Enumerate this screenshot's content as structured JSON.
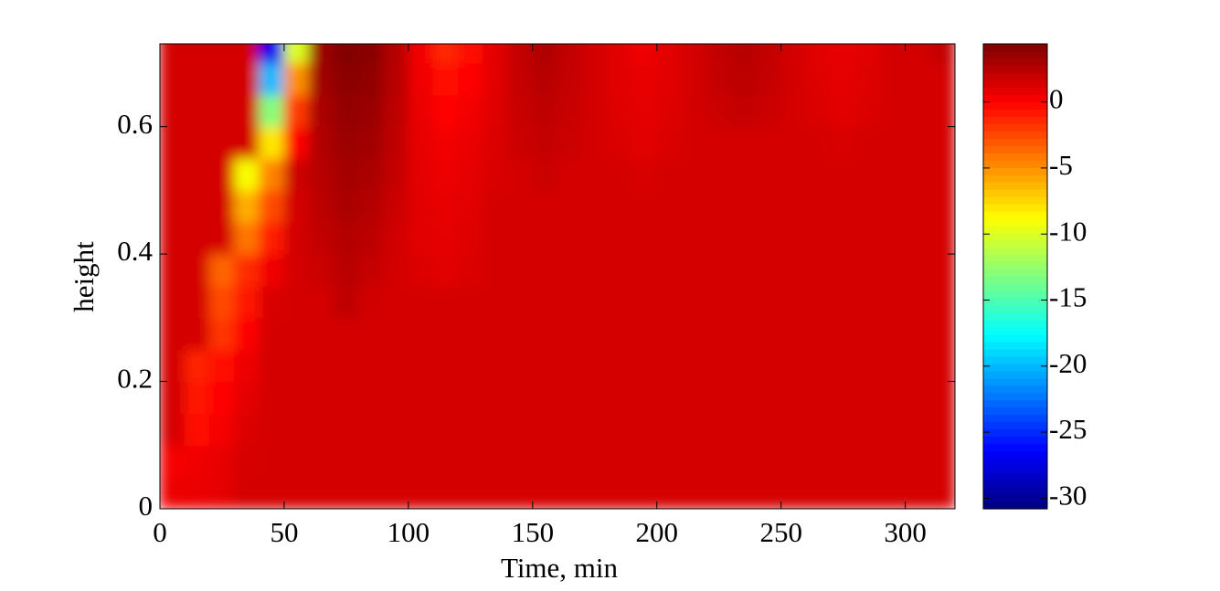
{
  "chart_data": {
    "type": "heatmap",
    "xlabel": "Time, min",
    "ylabel": "height",
    "colormap": "jet",
    "xlim": [
      0,
      320
    ],
    "xticks": [
      0,
      50,
      100,
      150,
      200,
      250,
      300
    ],
    "ylim": [
      0,
      0.73
    ],
    "yticks": [
      0,
      0.2,
      0.4,
      0.6
    ],
    "clim": [
      -30.8,
      4.4
    ],
    "cticks": [
      -30,
      -25,
      -20,
      -15,
      -10,
      -5,
      0
    ],
    "x": [
      5,
      15,
      25,
      35,
      45,
      55,
      65,
      75,
      85,
      95,
      105,
      115,
      125,
      135,
      145,
      155,
      165,
      175,
      185,
      195,
      205,
      215,
      225,
      235,
      245,
      255,
      265,
      275,
      285,
      295,
      305,
      315
    ],
    "y": [
      0.025,
      0.075,
      0.125,
      0.175,
      0.225,
      0.275,
      0.325,
      0.375,
      0.425,
      0.475,
      0.525,
      0.575,
      0.625,
      0.675,
      0.725
    ],
    "z": [
      [
        0.6,
        0.7,
        0.9,
        1.5,
        1.5,
        1.5,
        1.5,
        1.5,
        1.5,
        1.5,
        1.5,
        1.5,
        1.5,
        1.5,
        1.5,
        1.5,
        1.5,
        1.5,
        1.5,
        1.5,
        1.5,
        1.5,
        1.5,
        1.5,
        1.5,
        1.5,
        1.5,
        1.5,
        1.5,
        1.5,
        1.5,
        1.5
      ],
      [
        0.3,
        0.5,
        0.8,
        1.4,
        1.5,
        1.5,
        1.5,
        1.5,
        1.5,
        1.5,
        1.5,
        1.5,
        1.5,
        1.5,
        1.5,
        1.5,
        1.5,
        1.5,
        1.5,
        1.5,
        1.5,
        1.5,
        1.5,
        1.5,
        1.5,
        1.5,
        1.5,
        1.5,
        1.5,
        1.5,
        1.5,
        1.5
      ],
      [
        1.5,
        -0.5,
        0.3,
        1.2,
        1.5,
        1.5,
        1.5,
        1.5,
        1.5,
        1.5,
        1.5,
        1.5,
        1.5,
        1.5,
        1.5,
        1.5,
        1.5,
        1.5,
        1.5,
        1.5,
        1.5,
        1.5,
        1.5,
        1.5,
        1.5,
        1.5,
        1.5,
        1.5,
        1.5,
        1.5,
        1.5,
        1.5
      ],
      [
        1.5,
        -0.8,
        0,
        0.9,
        1.5,
        1.5,
        1.5,
        1.5,
        1.5,
        1.5,
        1.5,
        1.5,
        1.5,
        1.5,
        1.5,
        1.5,
        1.5,
        1.5,
        1.5,
        1.5,
        1.5,
        1.5,
        1.5,
        1.5,
        1.5,
        1.5,
        1.5,
        1.5,
        1.5,
        1.5,
        1.5,
        1.5
      ],
      [
        1.5,
        -1.2,
        -0.3,
        0.6,
        1.5,
        1.5,
        1.5,
        1.5,
        1.5,
        1.5,
        1.5,
        1.5,
        1.5,
        1.5,
        1.5,
        1.5,
        1.5,
        1.5,
        1.5,
        1.5,
        1.5,
        1.5,
        1.5,
        1.5,
        1.5,
        1.5,
        1.5,
        1.5,
        1.5,
        1.5,
        1.5,
        1.5
      ],
      [
        1.5,
        1.5,
        -1.8,
        -0.2,
        1.5,
        1.5,
        1.5,
        1.5,
        1.5,
        1.5,
        1.5,
        1.5,
        1.5,
        1.5,
        1.5,
        1.5,
        1.5,
        1.5,
        1.5,
        1.5,
        1.5,
        1.5,
        1.5,
        1.5,
        1.5,
        1.5,
        1.5,
        1.5,
        1.5,
        1.5,
        1.5,
        1.5
      ],
      [
        1.5,
        1.5,
        -2.5,
        -0.8,
        1.3,
        1.5,
        1.5,
        2.2,
        1.6,
        1.5,
        1.5,
        1.5,
        1.5,
        1.5,
        1.5,
        1.5,
        1.5,
        1.5,
        1.5,
        1.5,
        1.5,
        1.5,
        1.5,
        1.5,
        1.5,
        1.5,
        1.5,
        1.5,
        1.5,
        1.5,
        1.5,
        1.5
      ],
      [
        1.5,
        1.5,
        -3.5,
        -1.5,
        0.5,
        1.5,
        1.8,
        2.4,
        2.0,
        1.5,
        1.2,
        1.0,
        1.2,
        1.5,
        1.5,
        1.5,
        1.5,
        1.5,
        1.5,
        1.5,
        1.5,
        1.5,
        1.5,
        1.5,
        1.5,
        1.5,
        1.5,
        1.5,
        1.5,
        1.5,
        1.5,
        1.5
      ],
      [
        1.5,
        1.5,
        1.5,
        -4,
        -1,
        1.5,
        2.1,
        2.6,
        2.3,
        1.6,
        1.0,
        0.9,
        1.1,
        1.5,
        1.5,
        1.5,
        1.5,
        1.5,
        1.5,
        1.5,
        1.5,
        1.5,
        1.5,
        1.5,
        1.5,
        1.5,
        1.5,
        1.5,
        1.5,
        1.5,
        1.5,
        1.5
      ],
      [
        1.5,
        1.5,
        1.5,
        -6,
        -2.5,
        1.5,
        2.3,
        2.9,
        2.6,
        1.8,
        1.0,
        0.8,
        1.0,
        1.5,
        1.5,
        1.5,
        1.5,
        1.5,
        1.5,
        1.5,
        1.5,
        1.5,
        1.5,
        1.5,
        1.5,
        1.5,
        1.5,
        1.5,
        1.5,
        1.5,
        1.5,
        1.5
      ],
      [
        1.5,
        1.5,
        1.5,
        -9,
        -4.5,
        1.7,
        2.5,
        3.1,
        2.9,
        2.0,
        0.9,
        0.6,
        0.9,
        1.3,
        1.5,
        1.8,
        1.5,
        1.5,
        1.5,
        1.3,
        1.5,
        1.5,
        1.5,
        1.5,
        1.5,
        1.5,
        1.5,
        1.5,
        1.5,
        1.5,
        1.5,
        1.5
      ],
      [
        1.5,
        1.5,
        1.5,
        1.5,
        -8,
        0,
        2.7,
        3.4,
        3.2,
        2.2,
        0.8,
        0.4,
        0.7,
        1.2,
        1.8,
        2.0,
        1.8,
        1.5,
        1.2,
        1.0,
        1.2,
        1.5,
        1.5,
        1.5,
        1.5,
        1.5,
        1.5,
        1.3,
        1.5,
        1.5,
        1.5,
        1.5
      ],
      [
        1.5,
        1.5,
        1.5,
        1.5,
        -13,
        -2,
        2.9,
        3.7,
        3.5,
        2.3,
        0.7,
        0,
        0.4,
        1.1,
        1.9,
        2.2,
        1.9,
        1.5,
        1.1,
        0.9,
        1.1,
        1.5,
        1.8,
        2.0,
        1.8,
        1.5,
        1.2,
        1.0,
        1.2,
        1.5,
        1.5,
        1.5
      ],
      [
        1.5,
        1.5,
        1.5,
        1.5,
        -20,
        -5,
        3.2,
        4.0,
        3.8,
        2.5,
        0.5,
        -0.6,
        0,
        1.0,
        2.0,
        2.5,
        2.0,
        1.5,
        1.0,
        0.8,
        1.0,
        1.5,
        2.0,
        2.3,
        2.0,
        1.5,
        1.1,
        0.9,
        1.1,
        1.5,
        1.5,
        1.5
      ],
      [
        1.5,
        1.5,
        1.5,
        1.5,
        -27,
        -10,
        3.4,
        4.3,
        4.1,
        2.6,
        0.4,
        -1.3,
        -0.5,
        0.9,
        2.1,
        2.8,
        2.1,
        1.5,
        1.0,
        0.5,
        1.0,
        1.5,
        2.1,
        2.5,
        2.1,
        1.5,
        1.0,
        0.8,
        1.0,
        1.5,
        1.5,
        2.0
      ]
    ]
  }
}
